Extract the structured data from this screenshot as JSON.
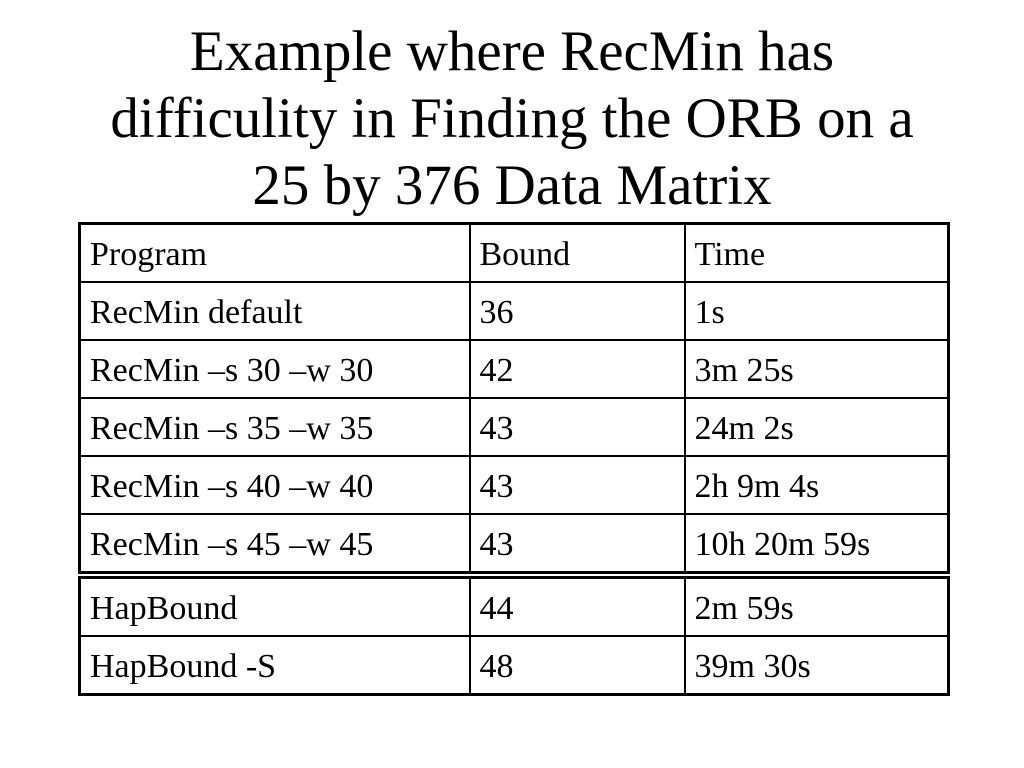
{
  "title": {
    "lines": [
      "Example where RecMin has",
      "difficulity in Finding the ORB on a",
      "25 by 376 Data Matrix"
    ]
  },
  "table": {
    "headers": [
      "Program",
      "Bound",
      "Time"
    ],
    "rows": [
      [
        "RecMin default",
        "36",
        "1s"
      ],
      [
        "RecMin –s 30 –w 30",
        "42",
        "3m 25s"
      ],
      [
        "RecMin –s 35 –w 35",
        "43",
        "24m 2s"
      ],
      [
        "RecMin –s 40 –w 40",
        "43",
        "2h 9m 4s"
      ],
      [
        "RecMin –s 45 –w 45",
        "43",
        "10h 20m 59s"
      ],
      [
        "HapBound",
        "44",
        "2m 59s"
      ],
      [
        "HapBound -S",
        "48",
        "39m 30s"
      ]
    ]
  },
  "colors": {
    "text": "#000000",
    "border": "#000000",
    "background": "#ffffff"
  }
}
